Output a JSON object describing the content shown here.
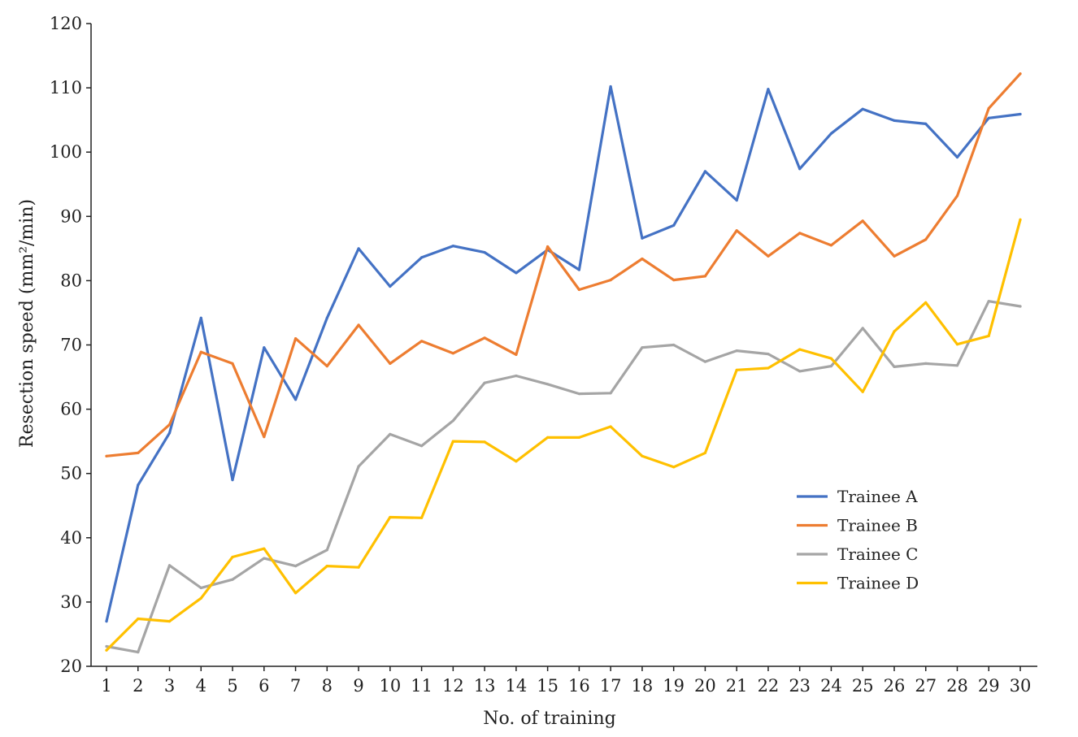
{
  "chart_data": {
    "type": "line",
    "xlabel": "No. of training",
    "ylabel": "Resection speed (mm²/min)",
    "ylim": [
      20,
      120
    ],
    "yticks": [
      20,
      30,
      40,
      50,
      60,
      70,
      80,
      90,
      100,
      110,
      120
    ],
    "x": [
      1,
      2,
      3,
      4,
      5,
      6,
      7,
      8,
      9,
      10,
      11,
      12,
      13,
      14,
      15,
      16,
      17,
      18,
      19,
      20,
      21,
      22,
      23,
      24,
      25,
      26,
      27,
      28,
      29,
      30
    ],
    "grid": false,
    "legend_position": "right",
    "series": [
      {
        "name": "Trainee A",
        "color": "#4472c4",
        "values": [
          27,
          48.2,
          56.3,
          74.2,
          49,
          69.6,
          61.5,
          74.2,
          85,
          79.1,
          83.6,
          85.4,
          84.4,
          81.2,
          84.8,
          81.7,
          110.2,
          86.6,
          88.6,
          97,
          92.5,
          109.8,
          97.4,
          102.9,
          106.7,
          104.9,
          104.4,
          99.2,
          105.3,
          105.9
        ]
      },
      {
        "name": "Trainee B",
        "color": "#ed7d31",
        "values": [
          52.7,
          53.2,
          57.6,
          68.9,
          67.1,
          55.7,
          71,
          66.7,
          73.1,
          67.1,
          70.6,
          68.7,
          71.1,
          68.5,
          85.3,
          78.6,
          80.1,
          83.4,
          80.1,
          80.7,
          87.8,
          83.8,
          87.4,
          85.5,
          89.3,
          83.8,
          86.4,
          93.2,
          106.8,
          112.2
        ]
      },
      {
        "name": "Trainee C",
        "color": "#a5a5a5",
        "values": [
          23.1,
          22.2,
          35.7,
          32.2,
          33.5,
          36.8,
          35.6,
          38.1,
          51.1,
          56.1,
          54.3,
          58.2,
          64.1,
          65.2,
          63.9,
          62.4,
          62.5,
          69.6,
          70,
          67.4,
          69.1,
          68.6,
          65.9,
          66.7,
          72.6,
          66.6,
          67.1,
          66.8,
          76.8,
          76
        ]
      },
      {
        "name": "Trainee D",
        "color": "#ffc000",
        "values": [
          22.5,
          27.4,
          27,
          30.6,
          37,
          38.3,
          31.4,
          35.6,
          35.4,
          43.2,
          43.1,
          55,
          54.9,
          51.9,
          55.6,
          55.6,
          57.3,
          52.7,
          51,
          53.2,
          66.1,
          66.4,
          69.3,
          67.9,
          62.7,
          72.1,
          76.6,
          70.1,
          71.4,
          89.5
        ]
      }
    ]
  }
}
